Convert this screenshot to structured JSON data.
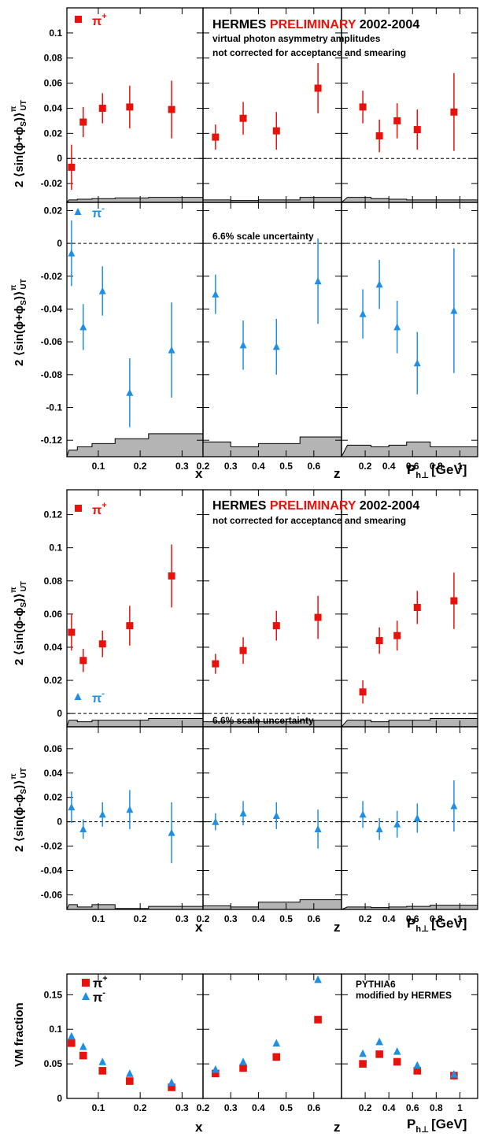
{
  "colors": {
    "pi_plus": "#e8120c",
    "pi_minus": "#1f8fe6",
    "band": "#b4b4b4",
    "frame": "#000000"
  },
  "labels": {
    "hermes": "HERMES",
    "preliminary": "PRELIMINARY",
    "years": "2002-2004",
    "vp_line": "virtual photon asymmetry amplitudes",
    "nc_line": "not corrected for acceptance and smearing",
    "scale_unc": "6.6% scale uncertainty",
    "pythia_1": "PYTHIA6",
    "pythia_2": "modified by HERMES",
    "pi_plus": "π",
    "pi_minus": "π",
    "plus_sup": "+",
    "minus_sup": "-",
    "ylabel_collins_a": "2 ⟨sin(ϕ+ϕ",
    "ylabel_sivers_a": "2 ⟨sin(ϕ-ϕ",
    "ylabel_sub_S": "S",
    "ylabel_close": ")⟩",
    "ylabel_sup_pi": "π",
    "ylabel_sub_UT": "UT",
    "ylabel_vm": "VM fraction",
    "x_title": "x",
    "z_title": "z",
    "p_title_main": "P",
    "p_title_sub": "h⊥",
    "p_title_unit": "[GeV]"
  },
  "chart_data": [
    {
      "type": "scatter",
      "name": "collins_pi_plus",
      "ylim": [
        -0.035,
        0.12
      ],
      "yticks": [
        -0.02,
        0,
        0.02,
        0.04,
        0.06,
        0.08,
        0.1
      ],
      "ytick_labels": [
        "-0.02",
        "0",
        "0.02",
        "0.04",
        "0.06",
        "0.08",
        "0.1"
      ],
      "zero_line": true,
      "legend": "pi_plus",
      "marker": "square",
      "panels": [
        {
          "var": "x",
          "points": [
            [
              0.036,
              -0.007,
              0.018
            ],
            [
              0.064,
              0.029,
              0.012
            ],
            [
              0.11,
              0.04,
              0.012
            ],
            [
              0.175,
              0.041,
              0.017
            ],
            [
              0.275,
              0.039,
              0.023
            ]
          ],
          "band": [
            [
              0.03,
              0.05,
              0.002
            ],
            [
              0.05,
              0.085,
              0.0025
            ],
            [
              0.085,
              0.14,
              0.003
            ],
            [
              0.14,
              0.22,
              0.0035
            ],
            [
              0.22,
              0.35,
              0.004
            ]
          ]
        },
        {
          "var": "z",
          "points": [
            [
              0.245,
              0.017,
              0.01
            ],
            [
              0.345,
              0.032,
              0.013
            ],
            [
              0.465,
              0.022,
              0.015
            ],
            [
              0.615,
              0.056,
              0.02
            ]
          ],
          "band": [
            [
              0.2,
              0.3,
              0.002
            ],
            [
              0.3,
              0.4,
              0.0015
            ],
            [
              0.4,
              0.55,
              0.002
            ],
            [
              0.55,
              0.7,
              0.004
            ]
          ]
        },
        {
          "var": "p",
          "points": [
            [
              0.18,
              0.041,
              0.013
            ],
            [
              0.32,
              0.018,
              0.013
            ],
            [
              0.47,
              0.03,
              0.014
            ],
            [
              0.64,
              0.023,
              0.016
            ],
            [
              0.95,
              0.037,
              0.031
            ]
          ],
          "band": [
            [
              0.05,
              0.25,
              0.004
            ],
            [
              0.25,
              0.4,
              0.003
            ],
            [
              0.4,
              0.55,
              0.0025
            ],
            [
              0.55,
              0.75,
              0.002
            ],
            [
              0.75,
              1.15,
              0.002
            ]
          ]
        }
      ]
    },
    {
      "type": "scatter",
      "name": "collins_pi_minus",
      "ylim": [
        -0.13,
        0.025
      ],
      "yticks": [
        -0.12,
        -0.1,
        -0.08,
        -0.06,
        -0.04,
        -0.02,
        0,
        0.02
      ],
      "ytick_labels": [
        "-0.12",
        "-0.1",
        "-0.08",
        "-0.06",
        "-0.04",
        "-0.02",
        "0",
        "0.02"
      ],
      "zero_line": true,
      "legend": "pi_minus",
      "marker": "triangle",
      "panels": [
        {
          "var": "x",
          "points": [
            [
              0.036,
              -0.006,
              0.02
            ],
            [
              0.064,
              -0.051,
              0.014
            ],
            [
              0.11,
              -0.029,
              0.015
            ],
            [
              0.175,
              -0.091,
              0.021
            ],
            [
              0.275,
              -0.065,
              0.029
            ]
          ],
          "band": [
            [
              0.03,
              0.05,
              0.004
            ],
            [
              0.05,
              0.085,
              0.006
            ],
            [
              0.085,
              0.14,
              0.008
            ],
            [
              0.14,
              0.22,
              0.011
            ],
            [
              0.22,
              0.35,
              0.014
            ]
          ]
        },
        {
          "var": "z",
          "points": [
            [
              0.245,
              -0.031,
              0.012
            ],
            [
              0.345,
              -0.062,
              0.015
            ],
            [
              0.465,
              -0.063,
              0.017
            ],
            [
              0.615,
              -0.023,
              0.026
            ]
          ],
          "band": [
            [
              0.2,
              0.3,
              0.009
            ],
            [
              0.3,
              0.4,
              0.006
            ],
            [
              0.4,
              0.55,
              0.008
            ],
            [
              0.55,
              0.7,
              0.012
            ]
          ]
        },
        {
          "var": "p",
          "points": [
            [
              0.18,
              -0.043,
              0.015
            ],
            [
              0.32,
              -0.025,
              0.015
            ],
            [
              0.47,
              -0.051,
              0.016
            ],
            [
              0.64,
              -0.073,
              0.019
            ],
            [
              0.95,
              -0.041,
              0.038
            ]
          ],
          "band": [
            [
              0.05,
              0.25,
              0.007
            ],
            [
              0.25,
              0.4,
              0.006
            ],
            [
              0.4,
              0.55,
              0.007
            ],
            [
              0.55,
              0.75,
              0.009
            ],
            [
              0.75,
              1.15,
              0.006
            ]
          ]
        }
      ]
    },
    {
      "type": "scatter",
      "name": "sivers_pi_plus",
      "ylim": [
        -0.008,
        0.135
      ],
      "yticks": [
        0,
        0.02,
        0.04,
        0.06,
        0.08,
        0.1,
        0.12
      ],
      "ytick_labels": [
        "0",
        "0.02",
        "0.04",
        "0.06",
        "0.08",
        "0.1",
        "0.12"
      ],
      "zero_line": true,
      "legend": "pi_plus",
      "marker": "square",
      "panels": [
        {
          "var": "x",
          "points": [
            [
              0.036,
              0.049,
              0.011
            ],
            [
              0.064,
              0.032,
              0.007
            ],
            [
              0.11,
              0.042,
              0.008
            ],
            [
              0.175,
              0.053,
              0.012
            ],
            [
              0.275,
              0.083,
              0.019
            ]
          ],
          "band": [
            [
              0.03,
              0.05,
              0.004
            ],
            [
              0.05,
              0.085,
              0.003
            ],
            [
              0.085,
              0.14,
              0.004
            ],
            [
              0.14,
              0.22,
              0.004
            ],
            [
              0.22,
              0.35,
              0.005
            ]
          ]
        },
        {
          "var": "z",
          "points": [
            [
              0.245,
              0.03,
              0.006
            ],
            [
              0.345,
              0.038,
              0.008
            ],
            [
              0.465,
              0.053,
              0.009
            ],
            [
              0.615,
              0.058,
              0.013
            ]
          ],
          "band": [
            [
              0.2,
              0.3,
              0.003
            ],
            [
              0.3,
              0.4,
              0.003
            ],
            [
              0.4,
              0.55,
              0.003
            ],
            [
              0.55,
              0.7,
              0.004
            ]
          ]
        },
        {
          "var": "p",
          "points": [
            [
              0.18,
              0.013,
              0.007
            ],
            [
              0.32,
              0.044,
              0.008
            ],
            [
              0.47,
              0.047,
              0.009
            ],
            [
              0.64,
              0.064,
              0.01
            ],
            [
              0.95,
              0.068,
              0.017
            ]
          ],
          "band": [
            [
              0.05,
              0.25,
              0.004
            ],
            [
              0.25,
              0.4,
              0.003
            ],
            [
              0.4,
              0.55,
              0.004
            ],
            [
              0.55,
              0.75,
              0.004
            ],
            [
              0.75,
              1.15,
              0.005
            ]
          ]
        }
      ]
    },
    {
      "type": "scatter",
      "name": "sivers_pi_minus",
      "ylim": [
        -0.072,
        0.078
      ],
      "yticks": [
        -0.06,
        -0.04,
        -0.02,
        0,
        0.02,
        0.04,
        0.06
      ],
      "ytick_labels": [
        "-0.06",
        "-0.04",
        "-0.02",
        "0",
        "0.02",
        "0.04",
        "0.06"
      ],
      "zero_line": true,
      "legend": "pi_minus",
      "marker": "triangle",
      "panels": [
        {
          "var": "x",
          "points": [
            [
              0.036,
              0.012,
              0.013
            ],
            [
              0.064,
              -0.006,
              0.008
            ],
            [
              0.11,
              0.006,
              0.01
            ],
            [
              0.175,
              0.01,
              0.016
            ],
            [
              0.275,
              -0.009,
              0.025
            ]
          ],
          "band": [
            [
              0.03,
              0.05,
              0.004
            ],
            [
              0.05,
              0.085,
              0.002
            ],
            [
              0.085,
              0.14,
              0.004
            ],
            [
              0.14,
              0.22,
              0.0008
            ],
            [
              0.22,
              0.35,
              0.0025
            ]
          ]
        },
        {
          "var": "z",
          "points": [
            [
              0.245,
              0.0,
              0.007
            ],
            [
              0.345,
              0.007,
              0.01
            ],
            [
              0.465,
              0.005,
              0.011
            ],
            [
              0.615,
              -0.006,
              0.016
            ]
          ],
          "band": [
            [
              0.2,
              0.3,
              0.003
            ],
            [
              0.3,
              0.4,
              0.002
            ],
            [
              0.4,
              0.55,
              0.006
            ],
            [
              0.55,
              0.7,
              0.008
            ]
          ]
        },
        {
          "var": "p",
          "points": [
            [
              0.18,
              0.006,
              0.011
            ],
            [
              0.32,
              -0.006,
              0.009
            ],
            [
              0.47,
              -0.002,
              0.011
            ],
            [
              0.64,
              0.003,
              0.012
            ],
            [
              0.95,
              0.013,
              0.021
            ]
          ],
          "band": [
            [
              0.05,
              0.25,
              0.002
            ],
            [
              0.25,
              0.4,
              0.0015
            ],
            [
              0.4,
              0.55,
              0.002
            ],
            [
              0.55,
              0.75,
              0.0025
            ],
            [
              0.75,
              1.15,
              0.0035
            ]
          ]
        }
      ]
    },
    {
      "type": "scatter",
      "name": "vm_fraction",
      "ylim": [
        0,
        0.18
      ],
      "yticks": [
        0,
        0.05,
        0.1,
        0.15
      ],
      "ytick_labels": [
        "0",
        "0.05",
        "0.1",
        "0.15"
      ],
      "zero_line": false,
      "legend": "both",
      "series": [
        {
          "name": "π+",
          "marker": "square",
          "color": "pi_plus",
          "panels": [
            [
              [
                0.036,
                0.08
              ],
              [
                0.064,
                0.062
              ],
              [
                0.11,
                0.04
              ],
              [
                0.175,
                0.025
              ],
              [
                0.275,
                0.016
              ]
            ],
            [
              [
                0.245,
                0.036
              ],
              [
                0.345,
                0.044
              ],
              [
                0.465,
                0.06
              ],
              [
                0.615,
                0.114
              ]
            ],
            [
              [
                0.18,
                0.05
              ],
              [
                0.32,
                0.064
              ],
              [
                0.47,
                0.053
              ],
              [
                0.64,
                0.04
              ],
              [
                0.95,
                0.033
              ]
            ]
          ]
        },
        {
          "name": "π-",
          "marker": "triangle",
          "color": "pi_minus",
          "panels": [
            [
              [
                0.036,
                0.09
              ],
              [
                0.064,
                0.075
              ],
              [
                0.11,
                0.053
              ],
              [
                0.175,
                0.036
              ],
              [
                0.275,
                0.023
              ]
            ],
            [
              [
                0.245,
                0.042
              ],
              [
                0.345,
                0.053
              ],
              [
                0.465,
                0.08
              ],
              [
                0.615,
                0.172
              ]
            ],
            [
              [
                0.18,
                0.065
              ],
              [
                0.32,
                0.082
              ],
              [
                0.47,
                0.068
              ],
              [
                0.64,
                0.048
              ],
              [
                0.95,
                0.035
              ]
            ]
          ]
        }
      ]
    }
  ],
  "x_axes": {
    "x": {
      "range": [
        0.025,
        0.35
      ],
      "ticks": [
        0.1,
        0.2,
        0.3
      ],
      "tick_labels": [
        "0.1",
        "0.2",
        "0.3"
      ]
    },
    "z": {
      "range": [
        0.2,
        0.7
      ],
      "ticks": [
        0.2,
        0.3,
        0.4,
        0.5,
        0.6
      ],
      "tick_labels": [
        "0.2",
        "0.3",
        "0.4",
        "0.5",
        "0.6"
      ]
    },
    "p": {
      "range": [
        0.0,
        1.15
      ],
      "ticks": [
        0.2,
        0.4,
        0.6,
        0.8,
        1.0
      ],
      "tick_labels": [
        "0.2",
        "0.4",
        "0.6",
        "0.8",
        "1"
      ]
    }
  }
}
